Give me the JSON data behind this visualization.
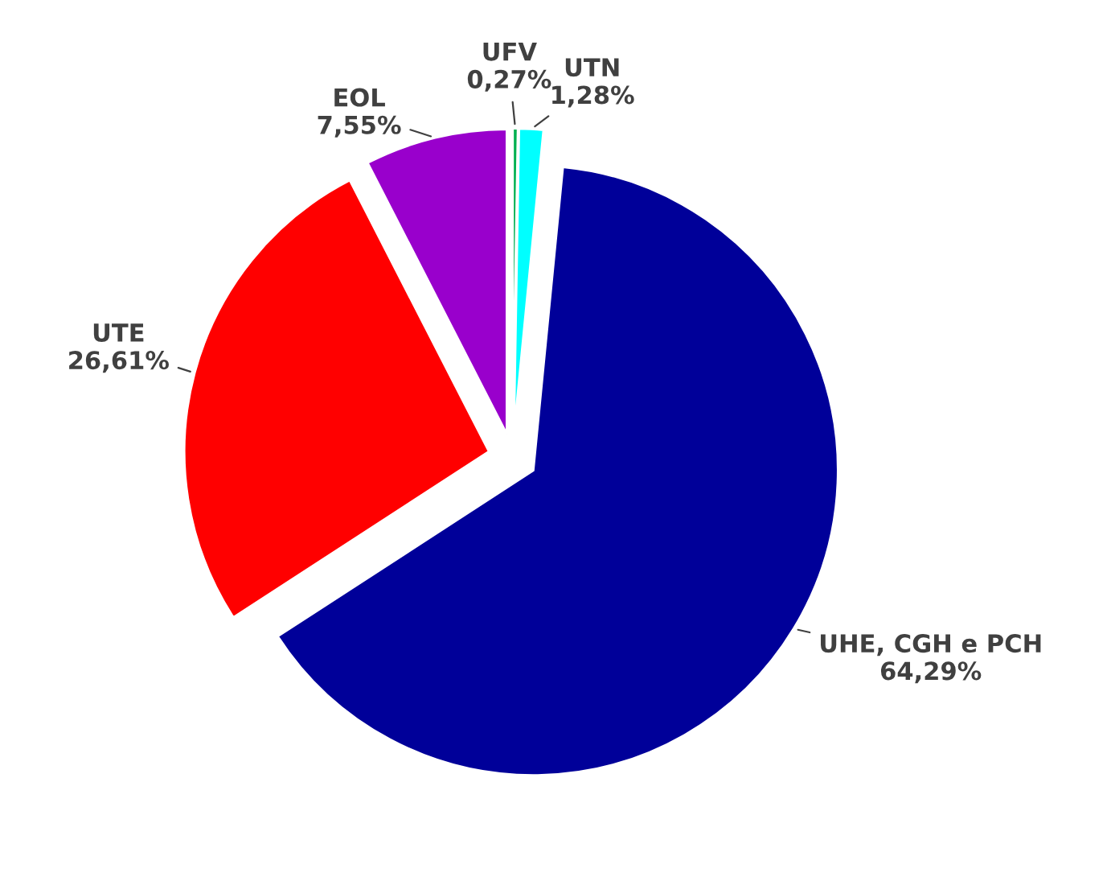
{
  "chart_data": {
    "type": "pie",
    "categories": [
      "UFV",
      "UTN",
      "UHE, CGH e PCH",
      "UTE",
      "EOL"
    ],
    "values": [
      0.27,
      1.28,
      64.29,
      26.61,
      7.55
    ],
    "value_labels": [
      "0,27%",
      "1,28%",
      "64,29%",
      "26,61%",
      "7,55%"
    ],
    "colors": [
      "#00b050",
      "#00ffff",
      "#000099",
      "#ff0000",
      "#9900cc"
    ],
    "legend": false
  }
}
